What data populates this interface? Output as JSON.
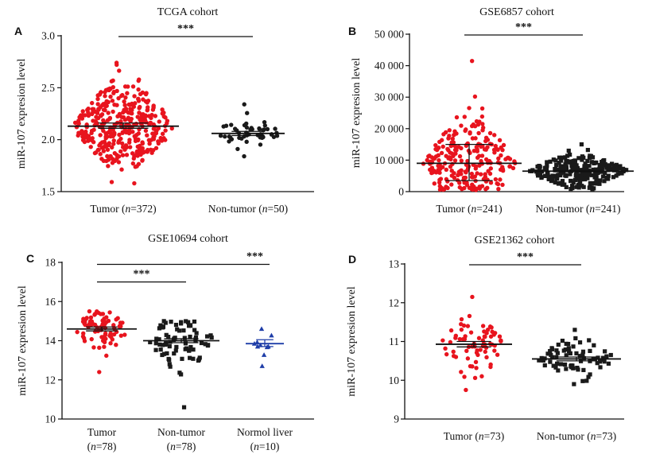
{
  "chart_data": [
    {
      "type": "scatter",
      "panel_label": "A",
      "title": "TCGA cohort",
      "ylabel": "miR-107 expresion level",
      "ylim": [
        1.5,
        3.0
      ],
      "yticks": [
        "1.5",
        "2.0",
        "2.5",
        "3.0"
      ],
      "significance": [
        {
          "groups": [
            0,
            1
          ],
          "label": "***"
        }
      ],
      "groups": [
        {
          "label": "Tumor (n=372)",
          "parts": [
            {
              "t": "Tumor ("
            },
            {
              "t": "n",
              "i": true
            },
            {
              "t": "=372)"
            }
          ],
          "n": 372,
          "mean": 2.13,
          "sd_low": 2.11,
          "sd_high": 2.16,
          "min": 1.58,
          "max": 2.74,
          "color": "#e8141e",
          "marker": "circle"
        },
        {
          "label": "Non-tumor (n=50)",
          "parts": [
            {
              "t": "Non-tumor ("
            },
            {
              "t": "n",
              "i": true
            },
            {
              "t": "=50)"
            }
          ],
          "n": 50,
          "mean": 2.06,
          "sd_low": 2.04,
          "sd_high": 2.08,
          "min": 1.84,
          "max": 2.34,
          "color": "#1a1a1a",
          "marker": "circle"
        }
      ]
    },
    {
      "type": "scatter",
      "panel_label": "B",
      "title": "GSE6857 cohort",
      "ylabel": "miR-107 expresion level",
      "ylim": [
        0,
        50000
      ],
      "yticks": [
        "0",
        "10 000",
        "20 000",
        "30 000",
        "40 000",
        "50 000"
      ],
      "significance": [
        {
          "groups": [
            0,
            1
          ],
          "label": "***"
        }
      ],
      "groups": [
        {
          "label": "Tumor (n=241)",
          "parts": [
            {
              "t": "Tumor ("
            },
            {
              "t": "n",
              "i": true
            },
            {
              "t": "=241)"
            }
          ],
          "n": 241,
          "mean": 9000,
          "sd_low": 3500,
          "sd_high": 15000,
          "min": 500,
          "max": 41500,
          "color": "#e8141e",
          "marker": "circle"
        },
        {
          "label": "Non-tumor (n=241)",
          "parts": [
            {
              "t": "Non-tumor ("
            },
            {
              "t": "n",
              "i": true
            },
            {
              "t": "=241)"
            }
          ],
          "n": 241,
          "mean": 6500,
          "sd_low": 6300,
          "sd_high": 6700,
          "min": 800,
          "max": 15000,
          "color": "#1a1a1a",
          "marker": "square"
        }
      ]
    },
    {
      "type": "scatter",
      "panel_label": "C",
      "title": "GSE10694 cohort",
      "ylabel": "miR-107 expresion level",
      "ylim": [
        10,
        18
      ],
      "yticks": [
        "10",
        "12",
        "14",
        "16",
        "18"
      ],
      "significance": [
        {
          "groups": [
            0,
            1
          ],
          "label": "***"
        },
        {
          "groups": [
            0,
            2
          ],
          "label": "***"
        }
      ],
      "groups": [
        {
          "label": "Tumor (n=78)",
          "parts": [
            {
              "t": "Tumor"
            }
          ],
          "parts2": [
            {
              "t": "("
            },
            {
              "t": "n",
              "i": true
            },
            {
              "t": "=78)"
            }
          ],
          "n": 78,
          "mean": 14.6,
          "sd_low": 14.5,
          "sd_high": 14.7,
          "min": 12.4,
          "max": 15.5,
          "color": "#e8141e",
          "marker": "circle"
        },
        {
          "label": "Non-tumor (n=78)",
          "parts": [
            {
              "t": "Non-tumor"
            }
          ],
          "parts2": [
            {
              "t": "("
            },
            {
              "t": "n",
              "i": true
            },
            {
              "t": "=78)"
            }
          ],
          "n": 78,
          "mean": 14.0,
          "sd_low": 13.9,
          "sd_high": 14.1,
          "min": 10.6,
          "max": 15.0,
          "color": "#1a1a1a",
          "marker": "square"
        },
        {
          "label": "Normol liver (n=10)",
          "parts": [
            {
              "t": "Normol liver"
            }
          ],
          "parts2": [
            {
              "t": "("
            },
            {
              "t": "n",
              "i": true
            },
            {
              "t": "=10)"
            }
          ],
          "n": 10,
          "mean": 13.85,
          "sd_low": 13.7,
          "sd_high": 14.05,
          "min": 12.7,
          "max": 14.6,
          "color": "#1f3ea8",
          "marker": "triangle"
        }
      ]
    },
    {
      "type": "scatter",
      "panel_label": "D",
      "title": "GSE21362 cohort",
      "ylabel": "miR-107 expresion level",
      "ylim": [
        9,
        13
      ],
      "yticks": [
        "9",
        "10",
        "11",
        "12",
        "13"
      ],
      "significance": [
        {
          "groups": [
            0,
            1
          ],
          "label": "***"
        }
      ],
      "groups": [
        {
          "label": "Tumor (n=73)",
          "parts": [
            {
              "t": "Tumor ("
            },
            {
              "t": "n",
              "i": true
            },
            {
              "t": "=73)"
            }
          ],
          "n": 73,
          "mean": 10.93,
          "sd_low": 10.86,
          "sd_high": 11.0,
          "min": 9.75,
          "max": 12.15,
          "color": "#e8141e",
          "marker": "circle"
        },
        {
          "label": "Non-tumor (n=73)",
          "parts": [
            {
              "t": "Non-tumor ("
            },
            {
              "t": "n",
              "i": true
            },
            {
              "t": "=73)"
            }
          ],
          "n": 73,
          "mean": 10.55,
          "sd_low": 10.5,
          "sd_high": 10.6,
          "min": 9.9,
          "max": 11.3,
          "color": "#1a1a1a",
          "marker": "square"
        }
      ]
    }
  ]
}
